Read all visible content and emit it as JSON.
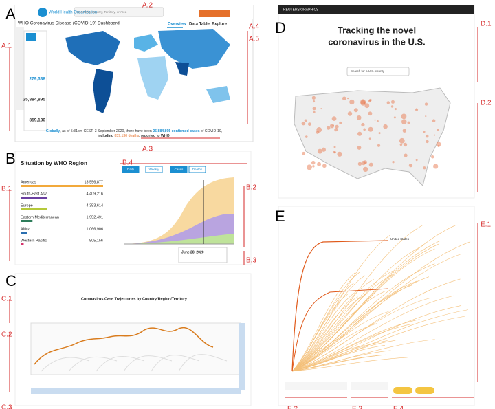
{
  "figure_labels": [
    "A",
    "A.1",
    "A.2",
    "A.3",
    "A.4",
    "A.5",
    "B",
    "B.1",
    "B.2",
    "B.3",
    "B.4",
    "C",
    "C.1",
    "C.2",
    "C.3",
    "D",
    "D.1",
    "D.2",
    "E",
    "E.1",
    "E.2",
    "E.3",
    "E.4"
  ],
  "who": {
    "org": "World Health Organization",
    "search": "Search by Country, Territory, or Area",
    "title": "WHO Coronavirus Disease (COVID-19) Dashboard",
    "tabs": [
      "Overview",
      "Data Table",
      "Explore"
    ],
    "stats": [
      "279,338",
      "25,884,895",
      "859,130"
    ],
    "summary": [
      "Globally",
      ", as of 5:31pm CEST, 3 September 2020, there have been ",
      "25,884,895 confirmed cases",
      " of COVID-19,",
      "including ",
      "859,130 deaths",
      ", reported to WHO."
    ]
  },
  "region_panel": {
    "title": "Situation by WHO Region",
    "regions": [
      {
        "name": "Americas",
        "value": "13,556,877",
        "color": "#f2a93b"
      },
      {
        "name": "South-East Asia",
        "value": "4,409,216",
        "color": "#6a3fa0"
      },
      {
        "name": "Europe",
        "value": "4,353,614",
        "color": "#b5c93a"
      },
      {
        "name": "Eastern Mediterranean",
        "value": "1,952,491",
        "color": "#2e7d5b"
      },
      {
        "name": "Africa",
        "value": "1,066,906",
        "color": "#2a6fb0"
      },
      {
        "name": "Western Pacific",
        "value": "505,156",
        "color": "#d6336c"
      }
    ],
    "buttons": [
      "Daily",
      "Weekly",
      "Cases",
      "Deaths"
    ],
    "tooltip": "June 28, 2020"
  },
  "trajectory": {
    "title": "Coronavirus Case Trajectories by Country/Region/Territory"
  },
  "reuters": {
    "brand": "REUTERS GRAPHICS",
    "title": [
      "Tracking the novel",
      "coronavirus in the U.S."
    ],
    "search": "Search for a U.S. county"
  },
  "growth": {
    "label": "United States"
  }
}
